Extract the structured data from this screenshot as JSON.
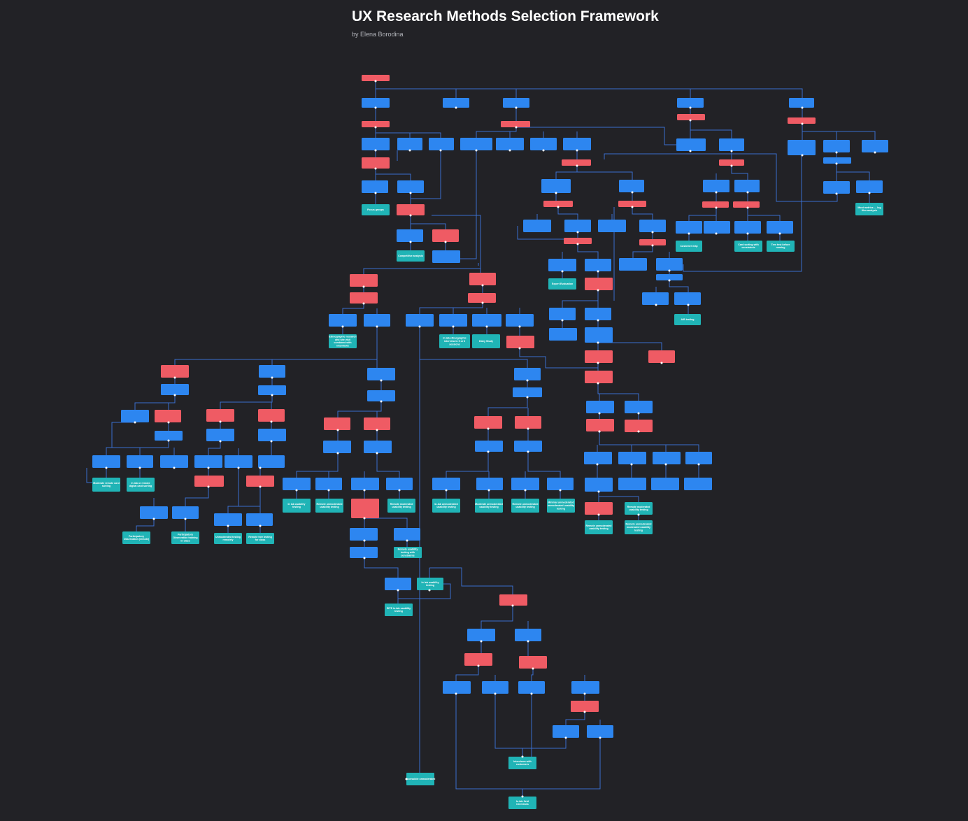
{
  "header": {
    "title": "UX Research Methods Selection Framework",
    "author": "by Elena Borodina"
  },
  "colors": {
    "background": "#222226",
    "question": "#ef5b64",
    "option": "#2d86f0",
    "method": "#20b4b6",
    "connector": "#3a6fcf"
  },
  "node_types": {
    "question": "decision question",
    "option": "answer option",
    "method": "recommended research method"
  },
  "diagram": {
    "nodes": [
      {
        "id": "n1",
        "type": "question",
        "label": ""
      },
      {
        "id": "n2",
        "type": "option",
        "label": ""
      },
      {
        "id": "n3",
        "type": "option",
        "label": ""
      },
      {
        "id": "n4",
        "type": "option",
        "label": ""
      },
      {
        "id": "n5",
        "type": "option",
        "label": ""
      },
      {
        "id": "n6",
        "type": "option",
        "label": ""
      },
      {
        "id": "n7",
        "type": "question",
        "label": ""
      },
      {
        "id": "n8",
        "type": "question",
        "label": ""
      },
      {
        "id": "n9",
        "type": "question",
        "label": ""
      },
      {
        "id": "n10",
        "type": "question",
        "label": ""
      },
      {
        "id": "n11",
        "type": "option",
        "label": ""
      },
      {
        "id": "n12",
        "type": "option",
        "label": ""
      },
      {
        "id": "n13",
        "type": "option",
        "label": ""
      },
      {
        "id": "n14",
        "type": "option",
        "label": ""
      },
      {
        "id": "n15",
        "type": "option",
        "label": ""
      },
      {
        "id": "n16",
        "type": "option",
        "label": ""
      },
      {
        "id": "n17",
        "type": "option",
        "label": ""
      },
      {
        "id": "n18",
        "type": "option",
        "label": ""
      },
      {
        "id": "n19",
        "type": "option",
        "label": ""
      },
      {
        "id": "n20",
        "type": "option",
        "label": ""
      },
      {
        "id": "n21",
        "type": "option",
        "label": ""
      },
      {
        "id": "n22",
        "type": "option",
        "label": ""
      },
      {
        "id": "n23",
        "type": "option",
        "label": ""
      },
      {
        "id": "n24",
        "type": "question",
        "label": ""
      },
      {
        "id": "n25",
        "type": "question",
        "label": ""
      },
      {
        "id": "n26",
        "type": "question",
        "label": ""
      },
      {
        "id": "n27",
        "type": "option",
        "label": ""
      },
      {
        "id": "n28",
        "type": "option",
        "label": ""
      },
      {
        "id": "n29",
        "type": "option",
        "label": ""
      },
      {
        "id": "n30",
        "type": "option",
        "label": ""
      },
      {
        "id": "n31",
        "type": "option",
        "label": ""
      },
      {
        "id": "n32",
        "type": "option",
        "label": ""
      },
      {
        "id": "n33",
        "type": "option",
        "label": ""
      },
      {
        "id": "n34",
        "type": "method",
        "label": "Focus groups"
      },
      {
        "id": "n35",
        "type": "question",
        "label": ""
      },
      {
        "id": "n36",
        "type": "question",
        "label": ""
      },
      {
        "id": "n37",
        "type": "question",
        "label": ""
      },
      {
        "id": "n38",
        "type": "question",
        "label": ""
      },
      {
        "id": "n39",
        "type": "question",
        "label": ""
      },
      {
        "id": "n40",
        "type": "method",
        "label": "Most metrics — log files analysis"
      },
      {
        "id": "n41",
        "type": "option",
        "label": ""
      },
      {
        "id": "n42",
        "type": "option",
        "label": ""
      },
      {
        "id": "n43",
        "type": "option",
        "label": ""
      },
      {
        "id": "n44",
        "type": "option",
        "label": ""
      },
      {
        "id": "n45",
        "type": "option",
        "label": ""
      },
      {
        "id": "n46",
        "type": "option",
        "label": ""
      },
      {
        "id": "n47",
        "type": "option",
        "label": ""
      },
      {
        "id": "n48",
        "type": "option",
        "label": ""
      },
      {
        "id": "n49",
        "type": "option",
        "label": ""
      },
      {
        "id": "n50",
        "type": "option",
        "label": ""
      },
      {
        "id": "n51",
        "type": "method",
        "label": "Competitive analysis"
      },
      {
        "id": "n52",
        "type": "question",
        "label": ""
      },
      {
        "id": "n53",
        "type": "method",
        "label": "Customer map"
      },
      {
        "id": "n54",
        "type": "method",
        "label": "Card sorting with constraints"
      },
      {
        "id": "n55",
        "type": "method",
        "label": "Tree test before naming"
      },
      {
        "id": "n56",
        "type": "question",
        "label": ""
      },
      {
        "id": "n57",
        "type": "question",
        "label": ""
      },
      {
        "id": "n58",
        "type": "option",
        "label": ""
      },
      {
        "id": "n59",
        "type": "option",
        "label": ""
      },
      {
        "id": "n60",
        "type": "option",
        "label": ""
      },
      {
        "id": "n61",
        "type": "option",
        "label": ""
      },
      {
        "id": "n62",
        "type": "method",
        "label": "Expert Evaluation"
      },
      {
        "id": "n63",
        "type": "question",
        "label": ""
      },
      {
        "id": "n64",
        "type": "option",
        "label": ""
      },
      {
        "id": "n65",
        "type": "option",
        "label": ""
      },
      {
        "id": "n66",
        "type": "question",
        "label": ""
      },
      {
        "id": "n67",
        "type": "question",
        "label": ""
      },
      {
        "id": "n68",
        "type": "option",
        "label": ""
      },
      {
        "id": "n69",
        "type": "option",
        "label": ""
      },
      {
        "id": "n70",
        "type": "method",
        "label": "A/B testing"
      },
      {
        "id": "n71",
        "type": "option",
        "label": ""
      },
      {
        "id": "n72",
        "type": "option",
        "label": ""
      },
      {
        "id": "n73",
        "type": "option",
        "label": ""
      },
      {
        "id": "n74",
        "type": "option",
        "label": ""
      },
      {
        "id": "n75",
        "type": "option",
        "label": ""
      },
      {
        "id": "n76",
        "type": "option",
        "label": ""
      },
      {
        "id": "n77",
        "type": "method",
        "label": "Ethnographic research and site visit combined with interviews"
      },
      {
        "id": "n78",
        "type": "method",
        "label": "In lab ethnographic interview in 5 or 6 sessions"
      },
      {
        "id": "n79",
        "type": "method",
        "label": "Diary Study"
      },
      {
        "id": "n80",
        "type": "question",
        "label": ""
      },
      {
        "id": "n81",
        "type": "question",
        "label": ""
      },
      {
        "id": "n82",
        "type": "option",
        "label": ""
      },
      {
        "id": "n83",
        "type": "option",
        "label": ""
      },
      {
        "id": "n84",
        "type": "option",
        "label": ""
      },
      {
        "id": "n85",
        "type": "option",
        "label": ""
      },
      {
        "id": "n86",
        "type": "question",
        "label": ""
      },
      {
        "id": "n87",
        "type": "question",
        "label": ""
      },
      {
        "id": "n88",
        "type": "question",
        "label": ""
      },
      {
        "id": "n89",
        "type": "question",
        "label": ""
      },
      {
        "id": "n90",
        "type": "question",
        "label": ""
      },
      {
        "id": "n91",
        "type": "option",
        "label": ""
      },
      {
        "id": "n92",
        "type": "option",
        "label": ""
      },
      {
        "id": "n93",
        "type": "option",
        "label": ""
      },
      {
        "id": "n94",
        "type": "option",
        "label": ""
      },
      {
        "id": "n95",
        "type": "option",
        "label": ""
      },
      {
        "id": "n96",
        "type": "option",
        "label": ""
      },
      {
        "id": "n97",
        "type": "option",
        "label": ""
      },
      {
        "id": "n98",
        "type": "option",
        "label": ""
      },
      {
        "id": "n99",
        "type": "option",
        "label": ""
      },
      {
        "id": "n100",
        "type": "option",
        "label": ""
      },
      {
        "id": "n101",
        "type": "question",
        "label": ""
      },
      {
        "id": "n102",
        "type": "question",
        "label": ""
      },
      {
        "id": "n103",
        "type": "question",
        "label": ""
      },
      {
        "id": "n104",
        "type": "question",
        "label": ""
      },
      {
        "id": "n105",
        "type": "question",
        "label": ""
      },
      {
        "id": "n106",
        "type": "question",
        "label": ""
      },
      {
        "id": "n107",
        "type": "question",
        "label": ""
      },
      {
        "id": "n108",
        "type": "question",
        "label": ""
      },
      {
        "id": "n109",
        "type": "question",
        "label": ""
      },
      {
        "id": "n110",
        "type": "option",
        "label": ""
      },
      {
        "id": "n111",
        "type": "option",
        "label": ""
      },
      {
        "id": "n112",
        "type": "option",
        "label": ""
      },
      {
        "id": "n113",
        "type": "option",
        "label": ""
      },
      {
        "id": "n114",
        "type": "option",
        "label": ""
      },
      {
        "id": "n115",
        "type": "option",
        "label": ""
      },
      {
        "id": "n116",
        "type": "option",
        "label": ""
      },
      {
        "id": "n117",
        "type": "option",
        "label": ""
      },
      {
        "id": "n118",
        "type": "option",
        "label": ""
      },
      {
        "id": "n119",
        "type": "option",
        "label": ""
      },
      {
        "id": "n120",
        "type": "option",
        "label": ""
      },
      {
        "id": "n121",
        "type": "option",
        "label": ""
      },
      {
        "id": "n122",
        "type": "option",
        "label": ""
      },
      {
        "id": "n123",
        "type": "option",
        "label": ""
      },
      {
        "id": "n124",
        "type": "option",
        "label": ""
      },
      {
        "id": "n125",
        "type": "option",
        "label": ""
      },
      {
        "id": "n126",
        "type": "option",
        "label": ""
      },
      {
        "id": "n127",
        "type": "option",
        "label": ""
      },
      {
        "id": "n128",
        "type": "option",
        "label": ""
      },
      {
        "id": "n129",
        "type": "option",
        "label": ""
      },
      {
        "id": "n130",
        "type": "option",
        "label": ""
      },
      {
        "id": "n131",
        "type": "option",
        "label": ""
      },
      {
        "id": "n132",
        "type": "option",
        "label": ""
      },
      {
        "id": "n133",
        "type": "option",
        "label": ""
      },
      {
        "id": "n134",
        "type": "option",
        "label": ""
      },
      {
        "id": "n135",
        "type": "option",
        "label": ""
      },
      {
        "id": "n136",
        "type": "option",
        "label": ""
      },
      {
        "id": "n137",
        "type": "option",
        "label": ""
      },
      {
        "id": "n138",
        "type": "option",
        "label": ""
      },
      {
        "id": "n139",
        "type": "method",
        "label": "Moderate remote card sorting"
      },
      {
        "id": "n140",
        "type": "method",
        "label": "In lab or remote digital card sorting"
      },
      {
        "id": "n141",
        "type": "question",
        "label": ""
      },
      {
        "id": "n142",
        "type": "question",
        "label": ""
      },
      {
        "id": "n143",
        "type": "method",
        "label": "In lab usability testing"
      },
      {
        "id": "n144",
        "type": "method",
        "label": "Remote unmoderated usability testing"
      },
      {
        "id": "n145",
        "type": "question",
        "label": ""
      },
      {
        "id": "n146",
        "type": "method",
        "label": "Remote moderated usability testing"
      },
      {
        "id": "n147",
        "type": "method",
        "label": "In-lab unmoderated usability testing"
      },
      {
        "id": "n148",
        "type": "method",
        "label": "Moderate unmoderated usability testing"
      },
      {
        "id": "n149",
        "type": "method",
        "label": "Remote unmoderated usability testing"
      },
      {
        "id": "n150",
        "type": "method",
        "label": "Minimal unmoderated unmoderated usability testing"
      },
      {
        "id": "n151",
        "type": "question",
        "label": ""
      },
      {
        "id": "n152",
        "type": "method",
        "label": "Remote unmoderated usability testing"
      },
      {
        "id": "n153",
        "type": "method",
        "label": "Remote moderated usability testing"
      },
      {
        "id": "n154",
        "type": "method",
        "label": "Remote unmoderated moderated usability testing"
      },
      {
        "id": "n155",
        "type": "option",
        "label": ""
      },
      {
        "id": "n156",
        "type": "option",
        "label": ""
      },
      {
        "id": "n157",
        "type": "option",
        "label": ""
      },
      {
        "id": "n158",
        "type": "option",
        "label": ""
      },
      {
        "id": "n159",
        "type": "option",
        "label": ""
      },
      {
        "id": "n160",
        "type": "option",
        "label": ""
      },
      {
        "id": "n161",
        "type": "option",
        "label": ""
      },
      {
        "id": "n162",
        "type": "option",
        "label": ""
      },
      {
        "id": "n163",
        "type": "option",
        "label": ""
      },
      {
        "id": "n164",
        "type": "method",
        "label": "Participatory Observation (remote)"
      },
      {
        "id": "n165",
        "type": "method",
        "label": "Participatory Observation training in class"
      },
      {
        "id": "n166",
        "type": "method",
        "label": "Unmoderated testing remotely"
      },
      {
        "id": "n167",
        "type": "method",
        "label": "Remote tree testing for class"
      },
      {
        "id": "n168",
        "type": "question",
        "label": ""
      },
      {
        "id": "n169",
        "type": "method",
        "label": "In-lab usability testing"
      },
      {
        "id": "n170",
        "type": "method",
        "label": "In lab usability testing"
      },
      {
        "id": "n171",
        "type": "method",
        "label": "Remote usability testing with constraints"
      },
      {
        "id": "n172",
        "type": "option",
        "label": ""
      },
      {
        "id": "n173",
        "type": "option",
        "label": ""
      },
      {
        "id": "n174",
        "type": "method",
        "label": "RITE in-lab usability testing"
      },
      {
        "id": "n175",
        "type": "question",
        "label": ""
      },
      {
        "id": "n176",
        "type": "option",
        "label": ""
      },
      {
        "id": "n177",
        "type": "option",
        "label": ""
      },
      {
        "id": "n178",
        "type": "question",
        "label": ""
      },
      {
        "id": "n179",
        "type": "question",
        "label": ""
      },
      {
        "id": "n180",
        "type": "option",
        "label": ""
      },
      {
        "id": "n181",
        "type": "option",
        "label": ""
      },
      {
        "id": "n182",
        "type": "option",
        "label": ""
      },
      {
        "id": "n183",
        "type": "option",
        "label": ""
      },
      {
        "id": "n184",
        "type": "question",
        "label": ""
      },
      {
        "id": "n185",
        "type": "option",
        "label": ""
      },
      {
        "id": "n186",
        "type": "option",
        "label": ""
      },
      {
        "id": "n187",
        "type": "method",
        "label": "Interviews with customers"
      },
      {
        "id": "n188",
        "type": "method",
        "label": "Accessible unmoderated"
      },
      {
        "id": "n189",
        "type": "method",
        "label": "In-lab field interviews"
      }
    ]
  }
}
